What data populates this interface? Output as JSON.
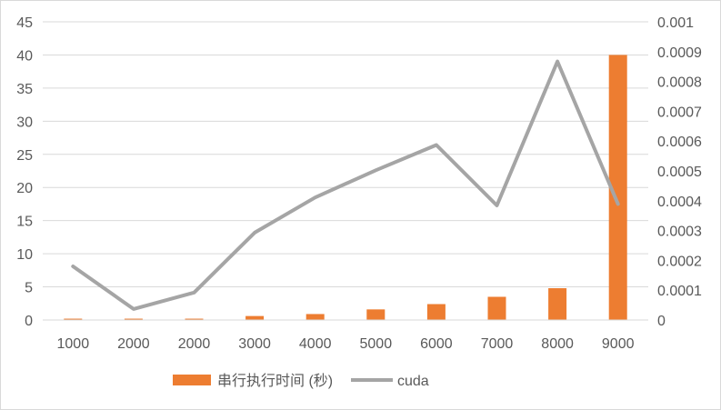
{
  "chart_data": {
    "type": "bar+line",
    "categories": [
      "1000",
      "2000",
      "2000",
      "3000",
      "4000",
      "5000",
      "6000",
      "7000",
      "8000",
      "9000"
    ],
    "series": [
      {
        "name": "串行执行时间 (秒)",
        "type": "bar",
        "axis": "left",
        "color": "#ED7D31",
        "values": [
          0.2,
          0.2,
          0.2,
          0.6,
          0.9,
          1.6,
          2.4,
          3.5,
          4.8,
          40
        ]
      },
      {
        "name": "cuda",
        "type": "line",
        "axis": "right",
        "color": "#A5A5A5",
        "values": [
          0.00018,
          3.7e-05,
          9.2e-05,
          0.000293,
          0.000411,
          0.000502,
          0.000587,
          0.000384,
          0.000867,
          0.000389
        ]
      }
    ],
    "left_axis": {
      "ylim": [
        0,
        45
      ],
      "ticks": [
        0,
        5,
        10,
        15,
        20,
        25,
        30,
        35,
        40,
        45
      ],
      "tick_labels": [
        "0",
        "5",
        "10",
        "15",
        "20",
        "25",
        "30",
        "35",
        "40",
        "45"
      ]
    },
    "right_axis": {
      "ylim": [
        0,
        0.001
      ],
      "ticks": [
        0,
        0.0001,
        0.0002,
        0.0003,
        0.0004,
        0.0005,
        0.0006,
        0.0007,
        0.0008,
        0.0009,
        0.001
      ],
      "tick_labels": [
        "0",
        "0.0001",
        "0.0002",
        "0.0003",
        "0.0004",
        "0.0005",
        "0.0006",
        "0.0007",
        "0.0008",
        "0.0009",
        "0.001"
      ]
    },
    "grid": true,
    "legend": "bottom",
    "title": "",
    "xlabel": "",
    "ylabel": ""
  }
}
